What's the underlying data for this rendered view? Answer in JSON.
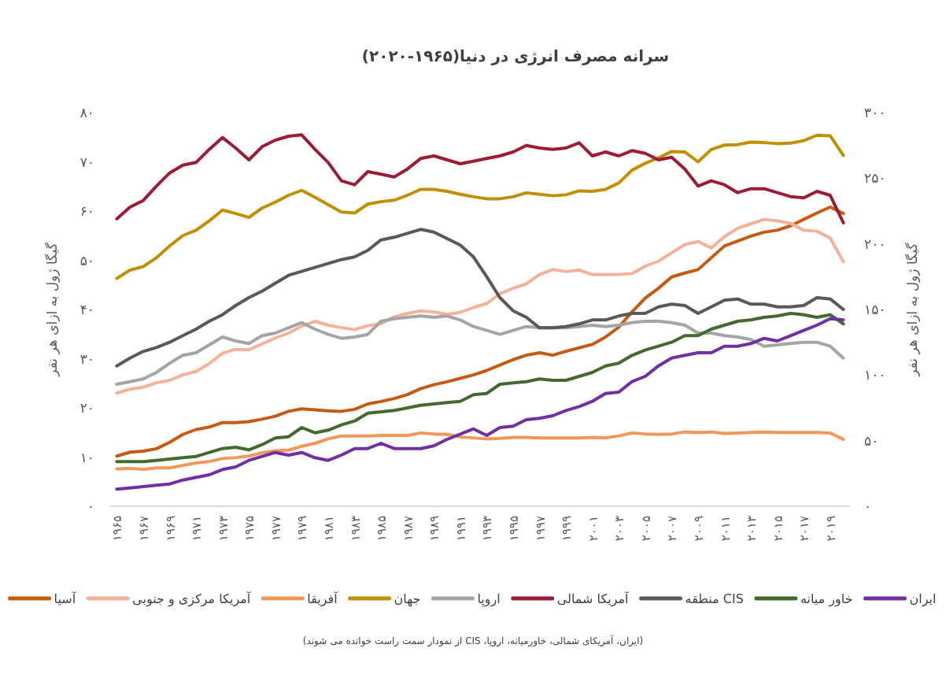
{
  "chart_data": {
    "type": "line",
    "title": "سرانه مصرف انرژی در دنیا(۱۹۶۵-۲۰۲۰)",
    "ylabel": "گیگا ژول به ازای هر نفر",
    "y2label": "گیگا ژول به ازای هر نفر",
    "annotations": [
      "(ایران، آمریکای شمالی، خاورمیانه، اروپا، CIS از نمودار سمت راست خوانده می شوند)"
    ],
    "categories": [
      "۱۹۶۵",
      null,
      "۱۹۶۷",
      null,
      "۱۹۶۹",
      null,
      "۱۹۷۱",
      null,
      "۱۹۷۳",
      null,
      "۱۹۷۵",
      null,
      "۱۹۷۷",
      null,
      "۱۹۷۹",
      null,
      "۱۹۸۱",
      null,
      "۱۹۸۳",
      null,
      "۱۹۸۵",
      null,
      "۱۹۸۷",
      null,
      "۱۹۸۹",
      null,
      "۱۹۹۱",
      null,
      "۱۹۹۳",
      null,
      "۱۹۹۵",
      null,
      "۱۹۹۷",
      null,
      "۱۹۹۹",
      null,
      "۲۰۰۱",
      null,
      "۲۰۰۳",
      null,
      "۲۰۰۵",
      null,
      "۲۰۰۷",
      null,
      "۲۰۰۹",
      null,
      "۲۰۱۱",
      null,
      "۲۰۱۳",
      null,
      "۲۰۱۵",
      null,
      "۲۰۱۷",
      null,
      "۲۰۱۹",
      null
    ],
    "ylim": [
      0,
      80
    ],
    "yticks": [
      {
        "value": 0,
        "label": "۰"
      },
      {
        "value": 10,
        "label": "۱۰"
      },
      {
        "value": 20,
        "label": "۲۰"
      },
      {
        "value": 30,
        "label": "۳۰"
      },
      {
        "value": 40,
        "label": "۴۰"
      },
      {
        "value": 50,
        "label": "۵۰"
      },
      {
        "value": 60,
        "label": "۶۰"
      },
      {
        "value": 70,
        "label": "۷۰"
      },
      {
        "value": 80,
        "label": "۸۰"
      }
    ],
    "y2lim": [
      0,
      300
    ],
    "y2ticks": [
      {
        "value": 0,
        "label": "۰"
      },
      {
        "value": 50,
        "label": "۵۰"
      },
      {
        "value": 100,
        "label": "۱۰۰"
      },
      {
        "value": 150,
        "label": "۱۵۰"
      },
      {
        "value": 200,
        "label": "۲۰۰"
      },
      {
        "value": 250,
        "label": "۲۵۰"
      },
      {
        "value": 300,
        "label": "۳۰۰"
      }
    ],
    "legend": "bottom",
    "marker": "none",
    "series": [
      {
        "name": "آسیا",
        "color": "#c55a11",
        "values": [
          10.2,
          11.0,
          11.2,
          11.7,
          13.0,
          14.6,
          15.6,
          16.1,
          17.0,
          17.0,
          17.2,
          17.7,
          18.3,
          19.3,
          19.8,
          19.6,
          19.4,
          19.3,
          19.7,
          20.8,
          21.3,
          21.9,
          22.7,
          23.9,
          24.7,
          25.3,
          26.0,
          26.7,
          27.6,
          28.7,
          29.8,
          30.7,
          31.2,
          30.7,
          31.5,
          32.2,
          32.9,
          34.4,
          36.4,
          39.5,
          42.3,
          44.3,
          46.6,
          47.4,
          48.1,
          50.5,
          52.9,
          53.9,
          54.9,
          55.7,
          56.1,
          57.0,
          58.3,
          59.6,
          60.8,
          59.5
        ]
      },
      {
        "name": "آمریکا مرکزی و جنوبی",
        "color": "#f4b29b",
        "values": [
          23.0,
          23.8,
          24.2,
          25.1,
          25.6,
          26.7,
          27.4,
          29.0,
          31.1,
          31.9,
          31.8,
          33.0,
          34.2,
          35.2,
          36.6,
          37.6,
          36.8,
          36.3,
          35.9,
          36.7,
          37.1,
          38.5,
          39.2,
          39.7,
          39.5,
          39.0,
          39.4,
          40.4,
          41.2,
          43.2,
          44.3,
          45.2,
          47.1,
          48.1,
          47.7,
          48.0,
          47.1,
          47.1,
          47.1,
          47.3,
          48.8,
          49.8,
          51.5,
          53.2,
          53.8,
          52.5,
          54.8,
          56.5,
          57.4,
          58.3,
          58.0,
          57.5,
          56.1,
          55.9,
          54.5,
          49.7
        ]
      },
      {
        "name": "آفریقا",
        "color": "#f0975a",
        "values": [
          7.6,
          7.7,
          7.5,
          7.8,
          7.8,
          8.3,
          8.8,
          9.1,
          9.7,
          9.9,
          10.2,
          10.9,
          11.3,
          11.4,
          12.2,
          12.8,
          13.7,
          14.3,
          14.3,
          14.3,
          14.4,
          14.4,
          14.4,
          14.9,
          14.7,
          14.6,
          14.1,
          13.9,
          13.7,
          13.8,
          14.0,
          14.0,
          13.9,
          13.9,
          13.9,
          13.9,
          14.0,
          13.9,
          14.3,
          14.9,
          14.7,
          14.6,
          14.7,
          15.1,
          15.0,
          15.1,
          14.8,
          14.9,
          15.0,
          15.1,
          15.0,
          15.0,
          15.0,
          15.0,
          14.9,
          13.6
        ]
      },
      {
        "name": "جهان",
        "color": "#bf9000",
        "values": [
          46.3,
          48.0,
          48.7,
          50.5,
          52.9,
          55.0,
          56.1,
          58.0,
          60.2,
          59.5,
          58.7,
          60.6,
          61.8,
          63.2,
          64.2,
          62.8,
          61.3,
          59.8,
          59.6,
          61.4,
          61.9,
          62.2,
          63.2,
          64.4,
          64.4,
          64.0,
          63.4,
          62.9,
          62.5,
          62.5,
          62.9,
          63.7,
          63.4,
          63.1,
          63.3,
          64.1,
          64.0,
          64.4,
          65.7,
          68.3,
          69.7,
          70.8,
          72.1,
          72.0,
          70.0,
          72.5,
          73.4,
          73.5,
          74.0,
          73.9,
          73.7,
          73.8,
          74.3,
          75.4,
          75.3,
          71.3
        ]
      },
      {
        "name": "اروپا",
        "color": "#a5a5a5",
        "axis": "y2",
        "values": [
          93,
          95,
          97,
          102,
          109,
          115,
          117,
          123,
          129,
          126,
          124,
          130,
          132,
          136,
          140,
          135,
          131,
          128,
          129,
          131,
          141,
          143,
          144,
          145,
          144,
          145,
          142,
          137,
          134,
          131,
          134,
          137,
          136,
          136,
          136,
          137,
          138,
          137,
          138,
          140,
          141,
          141,
          140,
          138,
          132,
          132,
          130,
          129,
          127,
          122,
          123,
          124,
          125,
          125,
          122,
          113
        ]
      },
      {
        "name": "آمریکا شمالی",
        "color": "#9b1c36",
        "axis": "y2",
        "values": [
          219,
          228,
          233,
          244,
          254,
          260,
          262,
          272,
          281,
          273,
          264,
          274,
          279,
          282,
          283,
          272,
          262,
          248,
          245,
          255,
          253,
          251,
          257,
          265,
          267,
          264,
          261,
          263,
          265,
          267,
          270,
          275,
          273,
          272,
          273,
          277,
          267,
          270,
          267,
          271,
          269,
          264,
          266,
          257,
          244,
          248,
          245,
          239,
          242,
          242,
          239,
          236,
          235,
          240,
          237,
          216
        ]
      },
      {
        "name": "منطقه CIS",
        "color": "#595959",
        "axis": "y2",
        "values": [
          107,
          113,
          118,
          121,
          125,
          130,
          135,
          141,
          146,
          153,
          159,
          164,
          170,
          176,
          179,
          182,
          185,
          188,
          190,
          195,
          203,
          205,
          208,
          211,
          209,
          204,
          199,
          190,
          175,
          159,
          149,
          144,
          136,
          136,
          137,
          139,
          142,
          142,
          145,
          147,
          147,
          152,
          154,
          153,
          147,
          152,
          157,
          158,
          154,
          154,
          152,
          152,
          153,
          159,
          158,
          150
        ]
      },
      {
        "name": "خاور میانه",
        "color": "#436a2c",
        "axis": "y2",
        "values": [
          34,
          34,
          34,
          35,
          36,
          37,
          38,
          41,
          44,
          45,
          43,
          47,
          52,
          53,
          60,
          56,
          58,
          62,
          65,
          71,
          72,
          73,
          75,
          77,
          78,
          79,
          80,
          85,
          86,
          93,
          94,
          95,
          97,
          96,
          96,
          99,
          102,
          107,
          109,
          115,
          119,
          122,
          125,
          130,
          130,
          135,
          138,
          141,
          142,
          144,
          145,
          147,
          146,
          144,
          146,
          139
        ]
      },
      {
        "name": "ایران",
        "color": "#7030a0",
        "axis": "y2",
        "values": [
          13,
          14,
          15,
          16,
          17,
          20,
          22,
          24,
          28,
          30,
          35,
          38,
          41,
          39,
          41,
          37,
          35,
          39,
          44,
          44,
          48,
          44,
          44,
          44,
          46,
          51,
          55,
          59,
          54,
          60,
          61,
          66,
          67,
          69,
          73,
          76,
          80,
          86,
          87,
          95,
          99,
          107,
          113,
          115,
          117,
          117,
          122,
          122,
          124,
          128,
          126,
          130,
          134,
          138,
          143,
          142
        ]
      }
    ]
  }
}
